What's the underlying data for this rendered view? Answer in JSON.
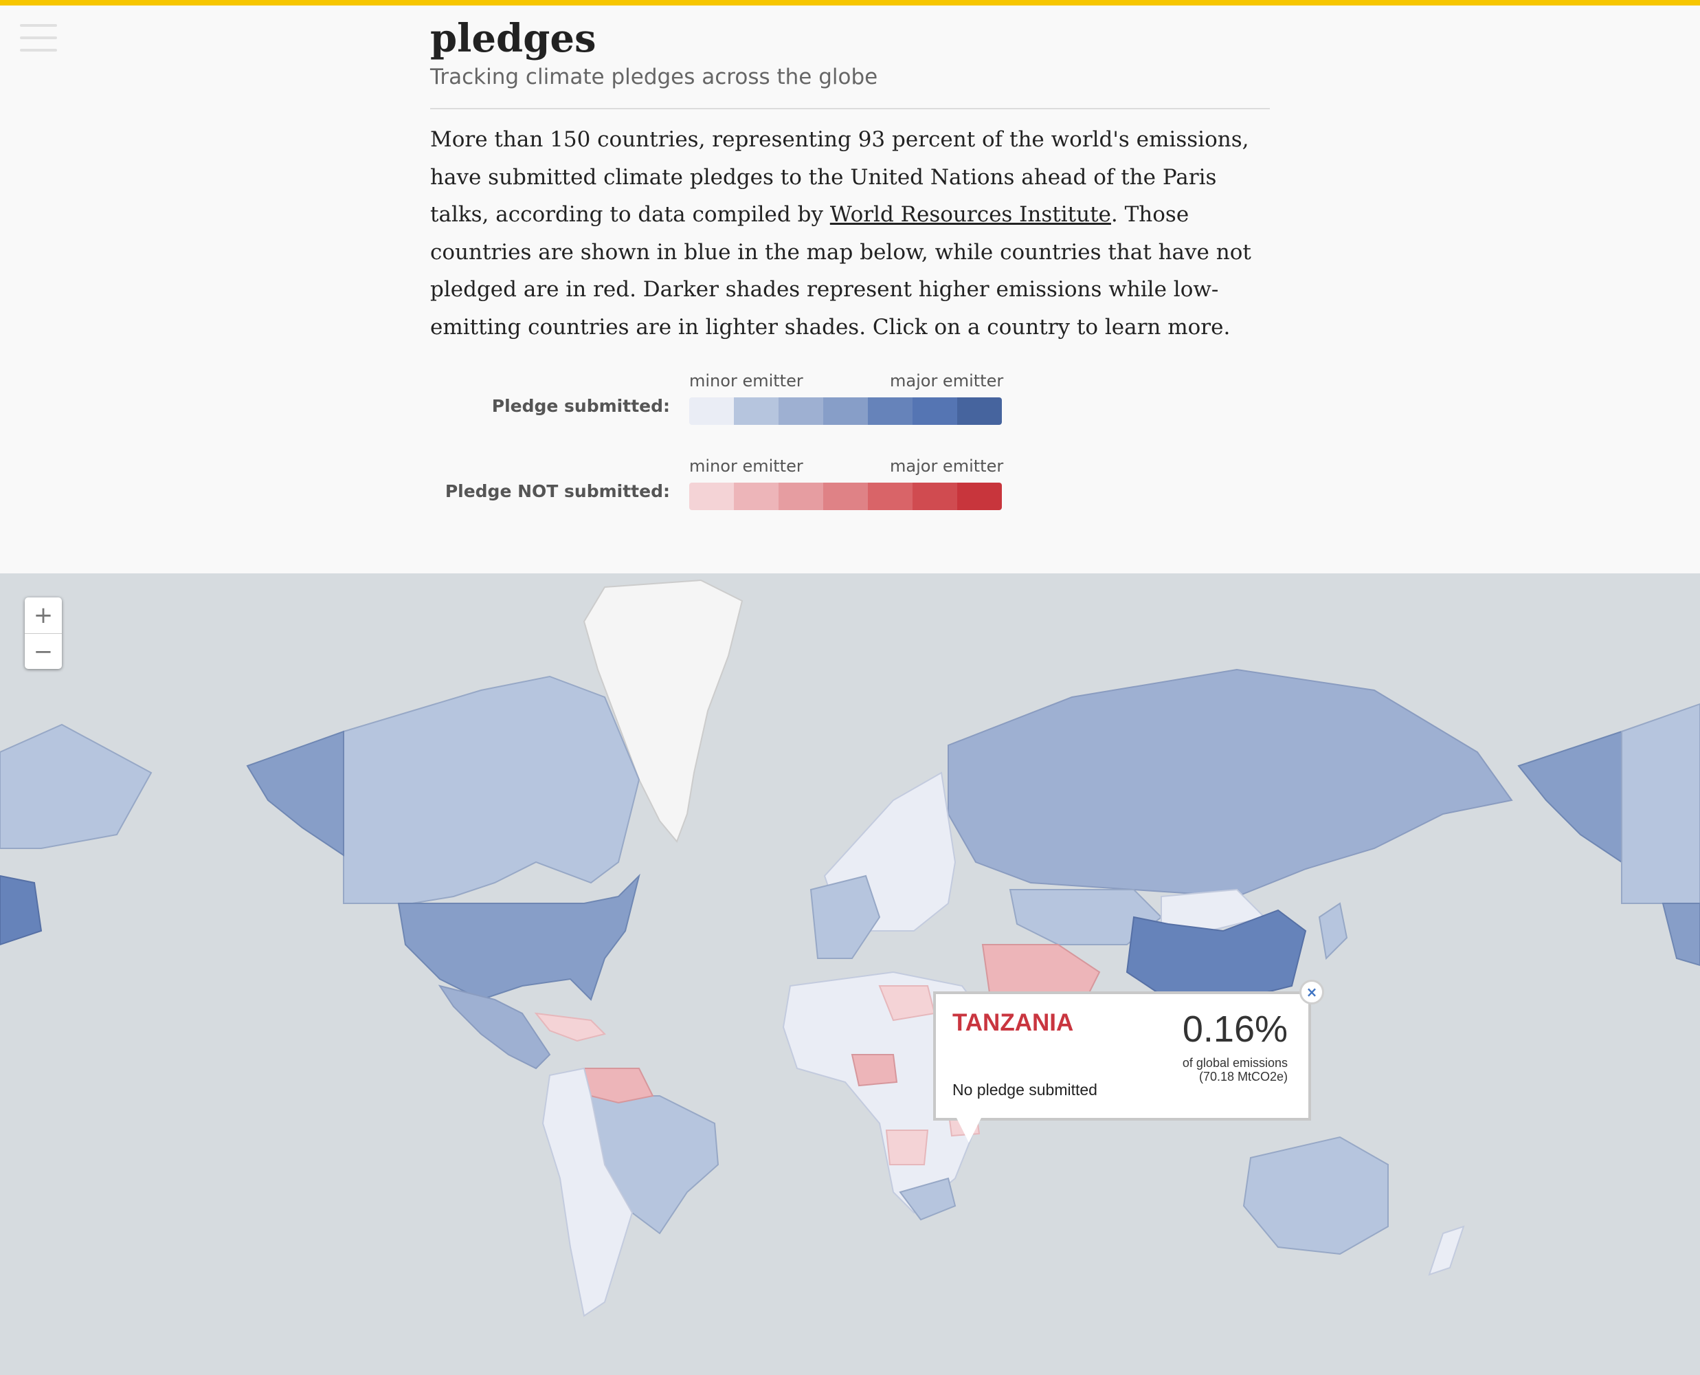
{
  "colors": {
    "accent_bar": "#f7c600",
    "ocean": "#d6dbdf",
    "blue_scale": [
      "#eaedf5",
      "#b6c5de",
      "#9eb0d2",
      "#879ec8",
      "#6683ba",
      "#5575b3",
      "#46649e"
    ],
    "red_scale": [
      "#f4d3d6",
      "#edb5b9",
      "#e69da1",
      "#df8286",
      "#d96468",
      "#d04b50",
      "#c8353c"
    ],
    "land_unknown": "#f5f5f5"
  },
  "header": {
    "title": "pledges",
    "subtitle": "Tracking climate pledges across the globe"
  },
  "intro": {
    "text_before_link": "More than 150 countries, representing 93 percent of the world's emissions, have submitted climate pledges to the United Nations ahead of the Paris talks, according to data compiled by ",
    "link_text": "World Resources Institute",
    "text_after_link": ". Those countries are shown in blue in the map below, while countries that have not pledged are in red. Darker shades represent higher emissions while low-emitting countries are in lighter shades. Click on a country to learn more."
  },
  "legend": {
    "submitted": {
      "label": "Pledge submitted:",
      "minor": "minor emitter",
      "major": "major emitter"
    },
    "not_submitted": {
      "label": "Pledge NOT submitted:",
      "minor": "minor emitter",
      "major": "major emitter"
    }
  },
  "map": {
    "zoom_in": "+",
    "zoom_out": "−",
    "popup": {
      "country": "TANZANIA",
      "percent": "0.16%",
      "sub_line1": "of global emissions",
      "sub_line2": "(70.18 MtCO2e)",
      "status": "No pledge submitted",
      "close": "×"
    }
  }
}
